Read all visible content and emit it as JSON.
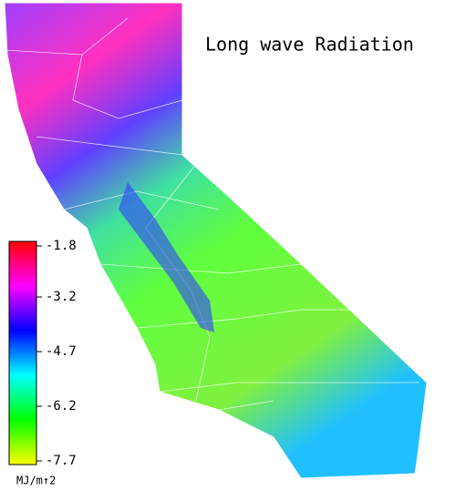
{
  "title": "Long wave Radiation",
  "colorbar": {
    "lim": [
      -7.7,
      -1.8
    ],
    "ticks": [
      -1.8,
      -3.2,
      -4.7,
      -6.2,
      -7.7
    ],
    "unit": "MJ/m↑2",
    "colors": [
      "#ffff00",
      "#00ff00",
      "#00ffff",
      "#0000ff",
      "#ff00ff",
      "#ff0000"
    ]
  }
}
